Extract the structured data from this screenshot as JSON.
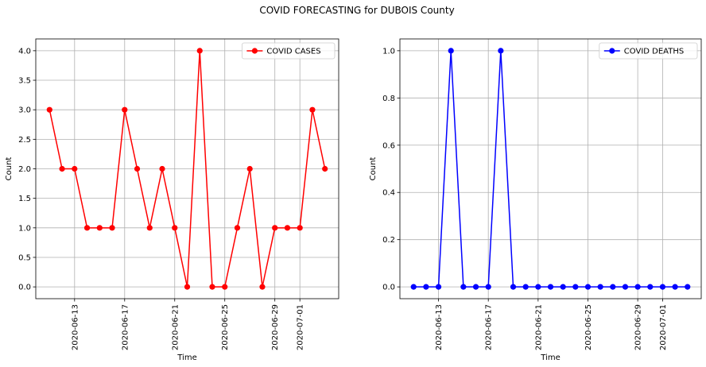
{
  "figure": {
    "title": "COVID FORECASTING for DUBOIS County"
  },
  "chart_data": [
    {
      "type": "line",
      "xlabel": "Time",
      "ylabel": "Count",
      "x_ticks": [
        "2020-06-13",
        "2020-06-17",
        "2020-06-21",
        "2020-06-25",
        "2020-06-29",
        "2020-07-01"
      ],
      "ylim": [
        -0.2,
        4.2
      ],
      "y_ticks": [
        "0.0",
        "0.5",
        "1.0",
        "1.5",
        "2.0",
        "2.5",
        "3.0",
        "3.5",
        "4.0"
      ],
      "grid": true,
      "legend_position": "top-right",
      "series": [
        {
          "name": "COVID CASES",
          "color": "#ff0000",
          "marker": "circle",
          "x": [
            "2020-06-11",
            "2020-06-12",
            "2020-06-13",
            "2020-06-14",
            "2020-06-15",
            "2020-06-16",
            "2020-06-17",
            "2020-06-18",
            "2020-06-19",
            "2020-06-20",
            "2020-06-21",
            "2020-06-22",
            "2020-06-23",
            "2020-06-24",
            "2020-06-25",
            "2020-06-26",
            "2020-06-27",
            "2020-06-28",
            "2020-06-29",
            "2020-06-30",
            "2020-07-01",
            "2020-07-02",
            "2020-07-03"
          ],
          "y": [
            3,
            2,
            2,
            1,
            1,
            1,
            3,
            2,
            1,
            2,
            1,
            0,
            4,
            0,
            0,
            1,
            2,
            0,
            1,
            1,
            1,
            3,
            2
          ]
        }
      ]
    },
    {
      "type": "line",
      "xlabel": "Time",
      "ylabel": "Count",
      "x_ticks": [
        "2020-06-13",
        "2020-06-17",
        "2020-06-21",
        "2020-06-25",
        "2020-06-29",
        "2020-07-01"
      ],
      "ylim": [
        -0.05,
        1.05
      ],
      "y_ticks": [
        "0.0",
        "0.2",
        "0.4",
        "0.6",
        "0.8",
        "1.0"
      ],
      "grid": true,
      "legend_position": "top-right",
      "series": [
        {
          "name": "COVID DEATHS",
          "color": "#0000ff",
          "marker": "circle",
          "x": [
            "2020-06-11",
            "2020-06-12",
            "2020-06-13",
            "2020-06-14",
            "2020-06-15",
            "2020-06-16",
            "2020-06-17",
            "2020-06-18",
            "2020-06-19",
            "2020-06-20",
            "2020-06-21",
            "2020-06-22",
            "2020-06-23",
            "2020-06-24",
            "2020-06-25",
            "2020-06-26",
            "2020-06-27",
            "2020-06-28",
            "2020-06-29",
            "2020-06-30",
            "2020-07-01",
            "2020-07-02",
            "2020-07-03"
          ],
          "y": [
            0,
            0,
            0,
            1,
            0,
            0,
            0,
            1,
            0,
            0,
            0,
            0,
            0,
            0,
            0,
            0,
            0,
            0,
            0,
            0,
            0,
            0,
            0
          ]
        }
      ]
    }
  ]
}
